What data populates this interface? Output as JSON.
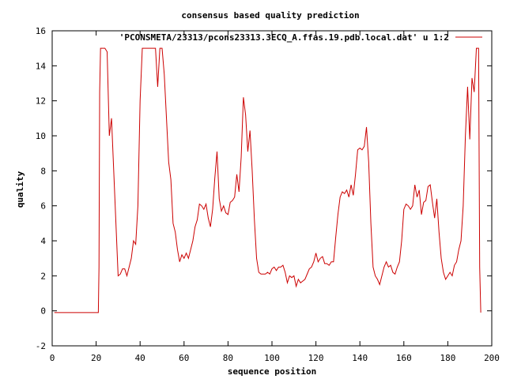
{
  "chart_data": {
    "type": "line",
    "title": "consensus based quality prediction",
    "xlabel": "sequence position",
    "ylabel": "quality",
    "xlim": [
      0,
      200
    ],
    "ylim": [
      -2,
      16
    ],
    "xticks": [
      0,
      20,
      40,
      60,
      80,
      100,
      120,
      140,
      160,
      180,
      200
    ],
    "yticks": [
      -2,
      0,
      2,
      4,
      6,
      8,
      10,
      12,
      14,
      16
    ],
    "grid": false,
    "legend_position": "top-right",
    "series": [
      {
        "name": "'PCONSMETA/23313/pcons23313.3ECQ_A.ffas.19.pdb.local.dat' u 1:2",
        "color": "#cc0000",
        "x": [
          1,
          2,
          3,
          4,
          5,
          6,
          7,
          8,
          9,
          10,
          11,
          12,
          13,
          14,
          15,
          16,
          17,
          18,
          19,
          20,
          21,
          21.3,
          21.6,
          22,
          23,
          24,
          25,
          26,
          27,
          28,
          29,
          30,
          31,
          32,
          33,
          34,
          35,
          36,
          37,
          38,
          39,
          40,
          41,
          42,
          43,
          44,
          45,
          46,
          47,
          48,
          49,
          50,
          51,
          52,
          53,
          54,
          55,
          56,
          57,
          58,
          59,
          60,
          61,
          62,
          63,
          64,
          65,
          66,
          67,
          68,
          69,
          70,
          71,
          72,
          73,
          74,
          75,
          76,
          77,
          78,
          79,
          80,
          81,
          82,
          83,
          84,
          85,
          86,
          87,
          88,
          89,
          90,
          91,
          92,
          93,
          94,
          95,
          96,
          97,
          98,
          99,
          100,
          101,
          102,
          103,
          104,
          105,
          106,
          107,
          108,
          109,
          110,
          111,
          112,
          113,
          114,
          115,
          116,
          117,
          118,
          119,
          120,
          121,
          122,
          123,
          124,
          125,
          126,
          127,
          128,
          129,
          130,
          131,
          132,
          133,
          134,
          135,
          136,
          137,
          138,
          139,
          140,
          141,
          142,
          143,
          144,
          145,
          146,
          147,
          148,
          149,
          150,
          151,
          152,
          153,
          154,
          155,
          156,
          157,
          158,
          159,
          160,
          161,
          162,
          163,
          164,
          165,
          166,
          167,
          168,
          169,
          170,
          171,
          172,
          173,
          174,
          175,
          176,
          177,
          178,
          179,
          180,
          181,
          182,
          183,
          184,
          185,
          186,
          187,
          188,
          189,
          190,
          191,
          192,
          193,
          194,
          194.5,
          195
        ],
        "y": [
          -0.1,
          -0.1,
          -0.1,
          -0.1,
          -0.1,
          -0.1,
          -0.1,
          -0.1,
          -0.1,
          -0.1,
          -0.1,
          -0.1,
          -0.1,
          -0.1,
          -0.1,
          -0.1,
          -0.1,
          -0.1,
          -0.1,
          -0.1,
          -0.1,
          2.5,
          12.5,
          15,
          15,
          15,
          14.8,
          10,
          11,
          8,
          5,
          2,
          2.1,
          2.4,
          2.4,
          2,
          2.5,
          3,
          4,
          3.8,
          6,
          12,
          15,
          15,
          15,
          15,
          15,
          15,
          15,
          12.8,
          15,
          15,
          13.5,
          11,
          8.5,
          7.5,
          5,
          4.5,
          3.5,
          2.8,
          3.2,
          3,
          3.3,
          3,
          3.5,
          4,
          4.8,
          5.2,
          6.1,
          6,
          5.8,
          6.1,
          5.3,
          4.8,
          5.8,
          7.6,
          9.1,
          6.4,
          5.7,
          6,
          5.6,
          5.5,
          6.2,
          6.3,
          6.5,
          7.8,
          6.8,
          8.8,
          12.2,
          11.2,
          9.1,
          10.3,
          8,
          5.2,
          3,
          2.2,
          2.1,
          2.1,
          2.1,
          2.2,
          2.1,
          2.4,
          2.5,
          2.3,
          2.5,
          2.5,
          2.6,
          2.2,
          1.6,
          2,
          1.9,
          2,
          1.4,
          1.8,
          1.6,
          1.7,
          1.8,
          2.1,
          2.4,
          2.5,
          2.8,
          3.3,
          2.8,
          3,
          3.1,
          2.7,
          2.7,
          2.6,
          2.8,
          2.8,
          4.2,
          5.5,
          6.5,
          6.8,
          6.7,
          6.9,
          6.5,
          7.2,
          6.6,
          7.8,
          9.2,
          9.3,
          9.2,
          9.4,
          10.5,
          8.5,
          5,
          2.5,
          2,
          1.8,
          1.5,
          2,
          2.5,
          2.8,
          2.5,
          2.6,
          2.2,
          2.1,
          2.5,
          2.8,
          4,
          5.8,
          6.1,
          6,
          5.8,
          6,
          7.2,
          6.5,
          6.9,
          5.5,
          6.2,
          6.3,
          7.1,
          7.2,
          6.2,
          5.3,
          6.4,
          4.5,
          3,
          2.2,
          1.8,
          2,
          2.2,
          2,
          2.6,
          2.8,
          3.5,
          4,
          6,
          10,
          12.8,
          9.8,
          13.3,
          12.5,
          15,
          15,
          2.5,
          -0.1
        ]
      }
    ]
  }
}
